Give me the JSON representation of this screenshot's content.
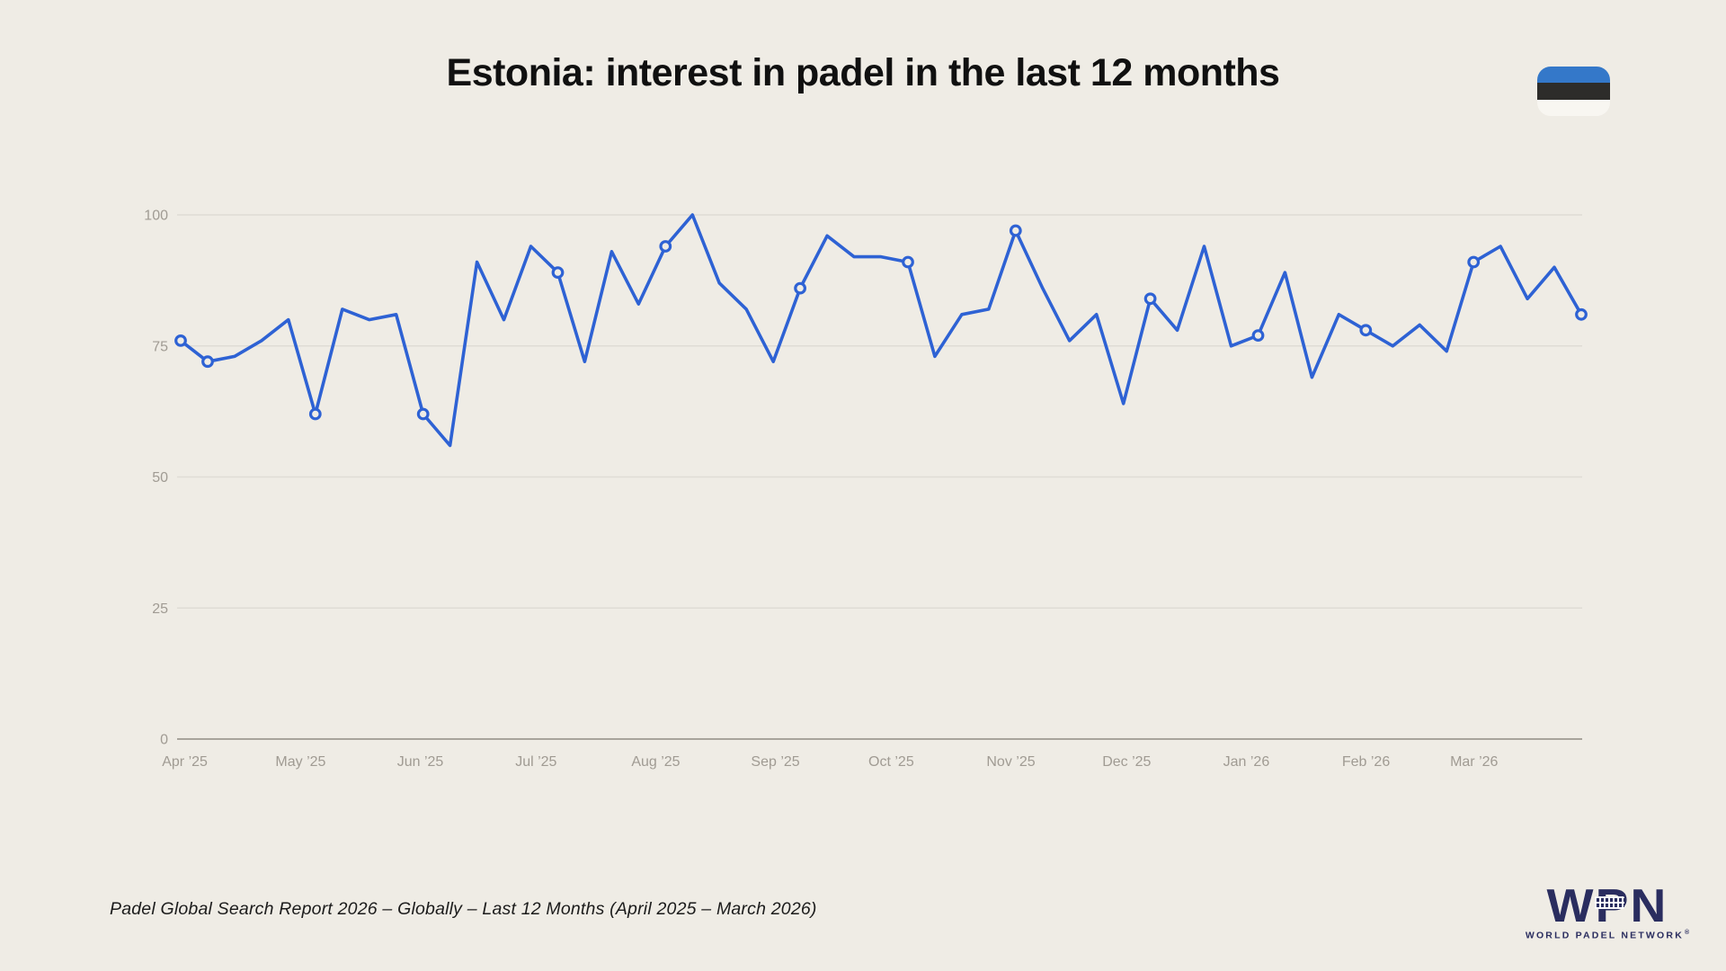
{
  "header": {
    "title": "Estonia: interest in padel in the last 12 months"
  },
  "flag": {
    "country": "Estonia",
    "band_colors": [
      "#3478c9",
      "#2d2c2a",
      "#f8f6f1"
    ]
  },
  "chart_data": {
    "type": "line",
    "title": "Estonia: interest in padel in the last 12 months",
    "xlabel": "",
    "ylabel": "",
    "ylim": [
      0,
      100
    ],
    "yticks": [
      0,
      25,
      50,
      75,
      100
    ],
    "grid": "horizontal",
    "legend": "none",
    "x_unit": "week",
    "x_axis": {
      "tick_labels": [
        "Apr ’25",
        "May ’25",
        "Jun ’25",
        "Jul ’25",
        "Aug ’25",
        "Sep ’25",
        "Oct ’25",
        "Nov ’25",
        "Dec ’25",
        "Jan ’26",
        "Feb ’26",
        "Mar ’26"
      ],
      "tick_day_offsets": [
        2,
        32,
        63,
        93,
        124,
        155,
        185,
        216,
        246,
        277,
        308,
        336
      ],
      "total_days": 364
    },
    "values": [
      76,
      72,
      73,
      76,
      80,
      62,
      82,
      80,
      81,
      62,
      56,
      91,
      80,
      94,
      89,
      72,
      93,
      83,
      94,
      100,
      87,
      82,
      72,
      86,
      96,
      92,
      92,
      91,
      73,
      81,
      82,
      97,
      86,
      76,
      81,
      64,
      84,
      78,
      94,
      75,
      77,
      89,
      69,
      81,
      78,
      75,
      79,
      74,
      91,
      94,
      84,
      90,
      81
    ],
    "marker_indices": [
      0,
      1,
      5,
      9,
      14,
      18,
      23,
      27,
      31,
      36,
      40,
      44,
      48,
      52
    ]
  },
  "footer": {
    "text": "Padel Global Search Report 2026 – Globally – Last 12 Months (April 2025 – March 2026)"
  },
  "logo": {
    "acronym": "WPN",
    "full_name": "WORLD PADEL NETWORK",
    "trademark": "®"
  },
  "colors": {
    "background": "#efece5",
    "line": "#2e62d4",
    "grid": "#dfdcd5",
    "axis_line": "#a8a49c",
    "tick_text": "#a09b93",
    "title_text": "#101010",
    "footer_text": "#1c1c1c",
    "logo_navy": "#2a2d5f"
  }
}
